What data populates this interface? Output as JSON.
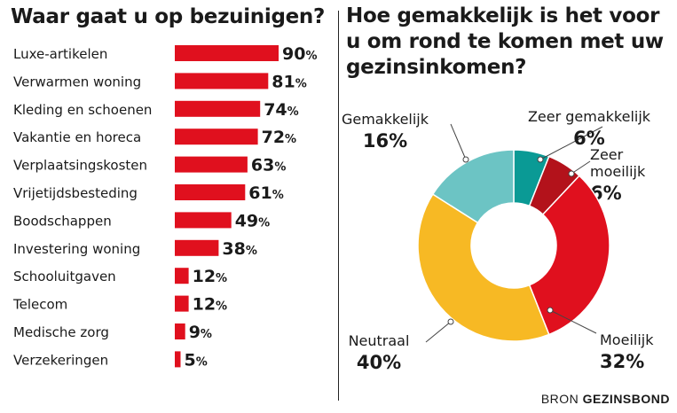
{
  "left": {
    "title": "Waar gaat u op bezuinigen?"
  },
  "right": {
    "title": "Hoe gemakkelijk is het voor u om rond te komen met uw gezinsinkomen?"
  },
  "source": {
    "prefix": "BRON",
    "name": "GEZINSBOND"
  },
  "colors": {
    "bar": "#e0101e",
    "text": "#1a1a1a"
  },
  "chart_data": [
    {
      "type": "bar",
      "orientation": "horizontal",
      "title": "Waar gaat u op bezuinigen?",
      "categories": [
        "Luxe-artikelen",
        "Verwarmen woning",
        "Kleding en schoenen",
        "Vakantie en horeca",
        "Verplaatsingskosten",
        "Vrijetijdsbesteding",
        "Boodschappen",
        "Investering woning",
        "Schooluitgaven",
        "Telecom",
        "Medische zorg",
        "Verzekeringen"
      ],
      "values": [
        90,
        81,
        74,
        72,
        63,
        61,
        49,
        38,
        12,
        12,
        9,
        5
      ],
      "unit": "%",
      "xlim": [
        0,
        100
      ],
      "grid": false,
      "legend": "none"
    },
    {
      "type": "pie",
      "variant": "donut",
      "title": "Hoe gemakkelijk is het voor u om rond te komen met uw gezinsinkomen?",
      "categories": [
        "Zeer gemakkelijk",
        "Zeer moeilijk",
        "Moeilijk",
        "Neutraal",
        "Gemakkelijk"
      ],
      "label_lines": [
        [
          "Zeer gemakkelijk"
        ],
        [
          "Zeer",
          "moeilijk"
        ],
        [
          "Moeilijk"
        ],
        [
          "Neutraal"
        ],
        [
          "Gemakkelijk"
        ]
      ],
      "values": [
        6,
        6,
        32,
        40,
        16
      ],
      "unit": "%",
      "colors": [
        "#0a9a95",
        "#b3121b",
        "#e0101e",
        "#f7b924",
        "#6cc4c4"
      ],
      "legend": "none"
    }
  ]
}
